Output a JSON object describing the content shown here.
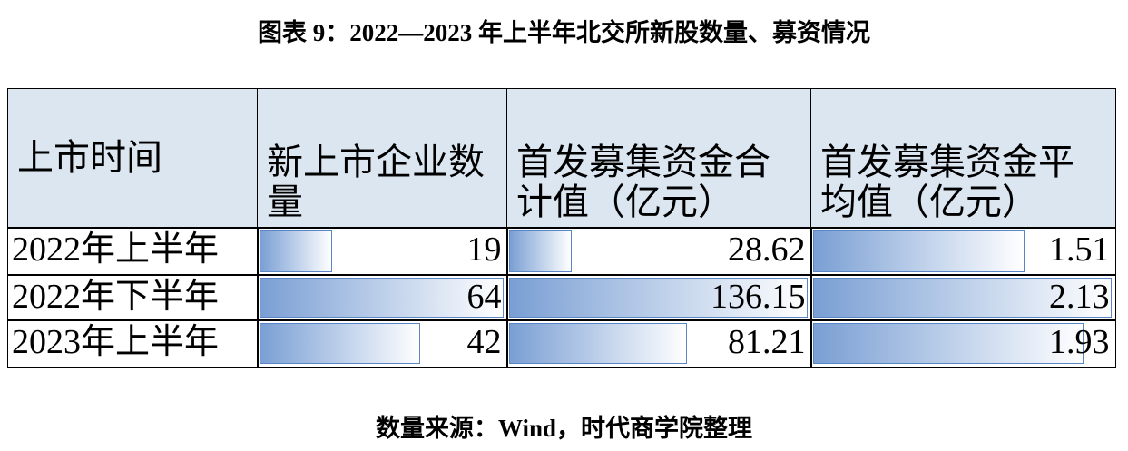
{
  "title": "图表 9：2022—2023 年上半年北交所新股数量、募资情况",
  "table": {
    "header": [
      "上市时间",
      "新上市企业数量",
      "首发募集资金合计值（亿元）",
      "首发募集资金平均值（亿元）"
    ],
    "rows": [
      [
        "2022年上半年",
        19,
        28.62,
        1.51
      ],
      [
        "2022年下半年",
        64,
        136.15,
        2.13
      ],
      [
        "2023年上半年",
        42,
        81.21,
        1.93
      ]
    ]
  },
  "source": "数量来源：Wind，时代商学院整理"
}
